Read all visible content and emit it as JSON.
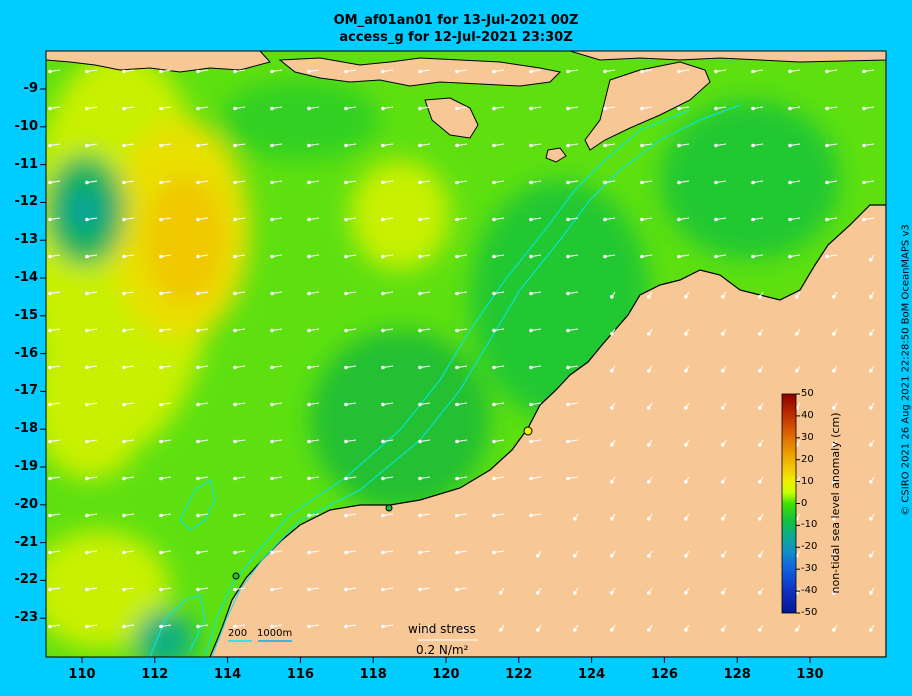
{
  "title_line1": "OM_af01an01 for 13-Jul-2021 00Z",
  "title_line2": "access_g for 12-Jul-2021 23:30Z",
  "credit": "© CSIRO 2021  26 Aug 2021 22:28:50 BoM OceanMAPS v3",
  "lat_ticks": [
    "-9",
    "-10",
    "-11",
    "-12",
    "-13",
    "-14",
    "-15",
    "-16",
    "-17",
    "-18",
    "-19",
    "-20",
    "-21",
    "-22",
    "-23"
  ],
  "lon_ticks": [
    "110",
    "112",
    "114",
    "116",
    "118",
    "120",
    "122",
    "124",
    "126",
    "128",
    "130"
  ],
  "colorbar": {
    "label": "non-tidal sea level anomaly (cm)",
    "ticks": [
      "50",
      "40",
      "30",
      "20",
      "10",
      "0",
      "-10",
      "-20",
      "-30",
      "-40",
      "-50"
    ],
    "colors": [
      "#8b0000",
      "#b22a00",
      "#e05a00",
      "#f08c00",
      "#f5c000",
      "#f0f000",
      "#c8ff00",
      "#7ff000",
      "#2ee000",
      "#10c830",
      "#10b070",
      "#10a0a0",
      "#1090c8",
      "#1060e0",
      "#1030c0",
      "#001890"
    ]
  },
  "wind_stress": {
    "label": "wind stress",
    "value": "0.2 N/m²"
  },
  "bathymetry": {
    "label_a": "200",
    "label_b": "1000m"
  },
  "colors": {
    "background": "#00ccff",
    "land": "#f7c896",
    "ocean_base": "#5ee010"
  }
}
